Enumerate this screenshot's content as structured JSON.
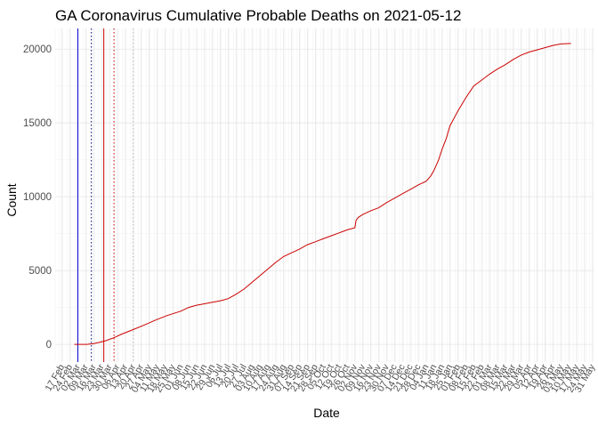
{
  "chart_data": {
    "type": "line",
    "title": "GA Coronavirus Cumulative Probable Deaths on 2021-05-12",
    "xlabel": "Date",
    "ylabel": "Count",
    "ylim": [
      -1200,
      21400
    ],
    "xlim": [
      "2020-02-11",
      "2021-06-01"
    ],
    "grid": true,
    "y_ticks": [
      0,
      5000,
      10000,
      15000,
      20000
    ],
    "x_tick_labels": [
      "17 Feb",
      "24 Feb",
      "02 Mar",
      "09 Mar",
      "16 Mar",
      "23 Mar",
      "30 Mar",
      "06 Apr",
      "13 Apr",
      "20 Apr",
      "27 Apr",
      "04 May",
      "11 May",
      "18 May",
      "25 May",
      "01 Jun",
      "08 Jun",
      "15 Jun",
      "22 Jun",
      "29 Jun",
      "06 Jul",
      "13 Jul",
      "20 Jul",
      "27 Jul",
      "03 Aug",
      "10 Aug",
      "17 Aug",
      "24 Aug",
      "31 Aug",
      "07 Sep",
      "14 Sep",
      "21 Sep",
      "28 Sep",
      "05 Oct",
      "12 Oct",
      "19 Oct",
      "26 Oct",
      "02 Nov",
      "09 Nov",
      "16 Nov",
      "23 Nov",
      "30 Nov",
      "07 Dec",
      "14 Dec",
      "21 Dec",
      "28 Dec",
      "04 Jan",
      "11 Jan",
      "18 Jan",
      "25 Jan",
      "01 Feb",
      "08 Feb",
      "15 Feb",
      "22 Feb",
      "01 Mar",
      "08 Mar",
      "15 Mar",
      "22 Mar",
      "29 Mar",
      "05 Apr",
      "12 Apr",
      "19 Apr",
      "26 Apr",
      "03 May",
      "10 May",
      "17 May",
      "24 May",
      "31 May"
    ],
    "x_tick_dates": [
      "2020-02-17",
      "2020-02-24",
      "2020-03-02",
      "2020-03-09",
      "2020-03-16",
      "2020-03-23",
      "2020-03-30",
      "2020-04-06",
      "2020-04-13",
      "2020-04-20",
      "2020-04-27",
      "2020-05-04",
      "2020-05-11",
      "2020-05-18",
      "2020-05-25",
      "2020-06-01",
      "2020-06-08",
      "2020-06-15",
      "2020-06-22",
      "2020-06-29",
      "2020-07-06",
      "2020-07-13",
      "2020-07-20",
      "2020-07-27",
      "2020-08-03",
      "2020-08-10",
      "2020-08-17",
      "2020-08-24",
      "2020-08-31",
      "2020-09-07",
      "2020-09-14",
      "2020-09-21",
      "2020-09-28",
      "2020-10-05",
      "2020-10-12",
      "2020-10-19",
      "2020-10-26",
      "2020-11-02",
      "2020-11-09",
      "2020-11-16",
      "2020-11-23",
      "2020-11-30",
      "2020-12-07",
      "2020-12-14",
      "2020-12-21",
      "2020-12-28",
      "2021-01-04",
      "2021-01-11",
      "2021-01-18",
      "2021-01-25",
      "2021-02-01",
      "2021-02-08",
      "2021-02-15",
      "2021-02-22",
      "2021-03-01",
      "2021-03-08",
      "2021-03-15",
      "2021-03-22",
      "2021-03-29",
      "2021-04-05",
      "2021-04-12",
      "2021-04-19",
      "2021-04-26",
      "2021-05-03",
      "2021-05-10",
      "2021-05-17",
      "2021-05-24",
      "2021-05-31"
    ],
    "vlines": [
      {
        "date": "2020-03-02",
        "color": "#0000cc",
        "style": "solid"
      },
      {
        "date": "2020-03-14",
        "color": "#000080",
        "style": "dotted"
      },
      {
        "date": "2020-03-25",
        "color": "#cc0000",
        "style": "solid"
      },
      {
        "date": "2020-04-03",
        "color": "#cc0000",
        "style": "dotted"
      },
      {
        "date": "2020-04-20",
        "color": "#bbbbbb",
        "style": "dotted"
      }
    ],
    "series": [
      {
        "color": "#cc0000",
        "x": [
          "2020-02-28",
          "2020-03-10",
          "2020-03-16",
          "2020-03-22",
          "2020-03-27",
          "2020-04-03",
          "2020-04-10",
          "2020-04-20",
          "2020-05-01",
          "2020-05-10",
          "2020-05-20",
          "2020-06-01",
          "2020-06-08",
          "2020-06-15",
          "2020-06-22",
          "2020-06-29",
          "2020-07-06",
          "2020-07-13",
          "2020-07-20",
          "2020-07-27",
          "2020-08-03",
          "2020-08-10",
          "2020-08-17",
          "2020-08-24",
          "2020-08-31",
          "2020-09-07",
          "2020-09-14",
          "2020-09-21",
          "2020-09-28",
          "2020-10-05",
          "2020-10-12",
          "2020-10-19",
          "2020-10-26",
          "2020-11-02",
          "2020-11-03",
          "2020-11-05",
          "2020-11-09",
          "2020-11-16",
          "2020-11-23",
          "2020-11-30",
          "2020-12-07",
          "2020-12-14",
          "2020-12-21",
          "2020-12-28",
          "2021-01-04",
          "2021-01-08",
          "2021-01-11",
          "2021-01-15",
          "2021-01-18",
          "2021-01-22",
          "2021-01-25",
          "2021-02-01",
          "2021-02-08",
          "2021-02-15",
          "2021-02-22",
          "2021-03-01",
          "2021-03-08",
          "2021-03-15",
          "2021-03-22",
          "2021-03-29",
          "2021-04-05",
          "2021-04-12",
          "2021-04-19",
          "2021-04-26",
          "2021-05-03",
          "2021-05-12"
        ],
        "y": [
          0,
          0,
          50,
          150,
          250,
          450,
          700,
          1000,
          1350,
          1650,
          1950,
          2250,
          2500,
          2650,
          2750,
          2850,
          2950,
          3100,
          3400,
          3750,
          4200,
          4650,
          5100,
          5550,
          5950,
          6200,
          6450,
          6750,
          6950,
          7150,
          7350,
          7550,
          7750,
          7900,
          8400,
          8600,
          8800,
          9050,
          9250,
          9600,
          9900,
          10200,
          10500,
          10800,
          11050,
          11400,
          11800,
          12500,
          13200,
          14000,
          14800,
          15800,
          16700,
          17500,
          17900,
          18300,
          18650,
          18950,
          19300,
          19600,
          19800,
          19950,
          20100,
          20250,
          20350,
          20380
        ]
      }
    ]
  }
}
